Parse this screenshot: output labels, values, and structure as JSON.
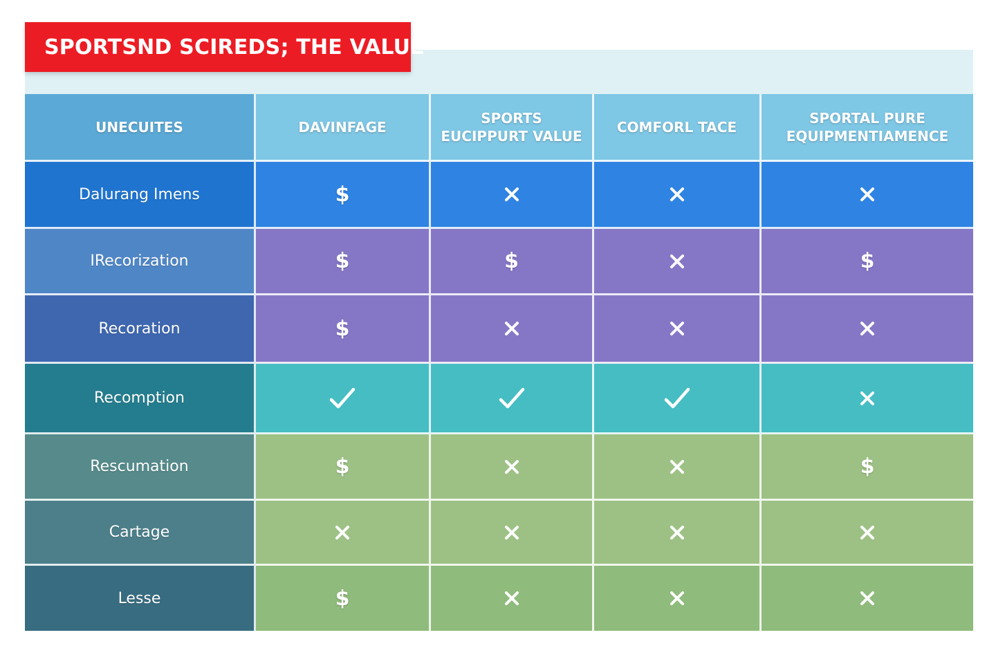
{
  "title": "SPORTSND SCIREDS; THE VALUE",
  "columns": [
    "UNECUITES",
    "DAVINFAGE",
    "SPORTS EUCIPPURT VALUE",
    "COMFORL TACE",
    "SPORTAL PURE EQUIPMENTIAMENCE"
  ],
  "rows": [
    {
      "label": "Dalurang Imens",
      "cells": [
        "dollar",
        "cross",
        "cross",
        "cross"
      ]
    },
    {
      "label": "IRecorization",
      "cells": [
        "dollar",
        "dollar",
        "cross",
        "dollar"
      ]
    },
    {
      "label": "Recoration",
      "cells": [
        "dollar",
        "cross",
        "cross",
        "cross"
      ]
    },
    {
      "label": "Recomption",
      "cells": [
        "check",
        "check",
        "check",
        "cross"
      ]
    },
    {
      "label": "Rescumation",
      "cells": [
        "dollar",
        "cross",
        "cross",
        "dollar"
      ]
    },
    {
      "label": "Cartage",
      "cells": [
        "cross",
        "cross",
        "cross",
        "cross"
      ]
    },
    {
      "label": "Lesse",
      "cells": [
        "dollar",
        "cross",
        "cross",
        "cross"
      ]
    }
  ],
  "symbols": {
    "dollar": "$",
    "cross": "cross-icon",
    "check": "check-icon"
  },
  "colors": {
    "title_banner": "#ec1c24",
    "header_first": "#5ba9d6",
    "header_other": "#7ec7e5",
    "row1": "#2f83e2",
    "row2_row3": "#8677c6",
    "row4": "#45bdc3",
    "row5_row6": "#9dc185",
    "row7": "#8fbb7c"
  }
}
